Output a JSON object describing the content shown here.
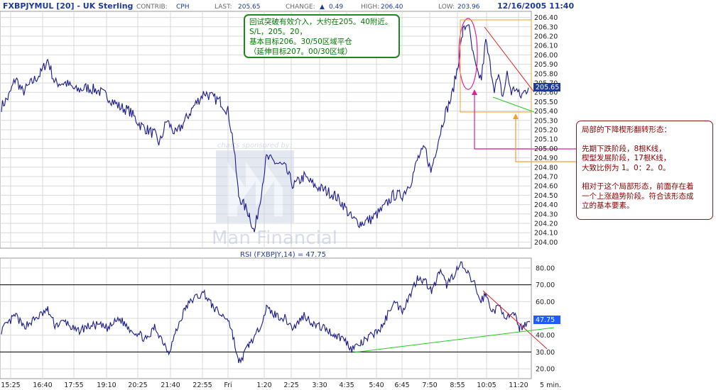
{
  "header": {
    "title": "FXBPJYMUL [20] - UK Sterling",
    "contrib_label": "CONTRIB:",
    "contrib_value": "CPH",
    "last_label": "LAST:",
    "last_value": "205.65",
    "change_label": "CHANGE:",
    "change_arrow": "▲",
    "change_value": "0.49",
    "high_label": "HIGH:",
    "high_value": "206.40",
    "low_label": "LOW:",
    "low_value": "203.96",
    "datetime": "12/16/2005 11:40"
  },
  "watermark": {
    "sponsored": "charts sponsored by:",
    "brand": "Man Financial"
  },
  "notes": {
    "green": [
      "回试突破有效介入，大约在205。40附近。",
      "S/L，205。20，",
      "基本目标206。30/50区域平仓",
      "（延伸目标207。00/30区域）"
    ],
    "red_title": "局部的下降楔形翻转形态：",
    "red_lines": [
      "先期下跌阶段，8根K线，",
      "楔型发展阶段，17根K线，",
      "大致比例为 1。0：2。0。"
    ],
    "red_lines2": [
      "相对于这个局部形态，前面存在着",
      "一个上涨趋势阶段。符合该形态成",
      "立的基本要素。"
    ]
  },
  "colors": {
    "price_line": "#1a1a8c",
    "rsi_line": "#1a1a8c",
    "grid": "#d9d9d9",
    "trend_red": "#e02020",
    "trend_green": "#22cc22",
    "ellipse_magenta": "#e0209a",
    "box_orange": "#f0a030",
    "last_price_box": "#1f3b99",
    "rsi_box": "#1e5cff"
  },
  "chart_data": [
    {
      "type": "line",
      "name": "FXBPJYMUL price (20-minute)",
      "ylim": [
        203.95,
        206.45
      ],
      "y_ticks": [
        204.0,
        204.1,
        204.2,
        204.3,
        204.4,
        204.5,
        204.6,
        204.7,
        204.8,
        204.9,
        205.0,
        205.1,
        205.2,
        205.3,
        205.4,
        205.5,
        205.6,
        205.7,
        205.8,
        205.9,
        206.0,
        206.1,
        206.2,
        206.3,
        206.4
      ],
      "y_tick_labels": [
        "204.00",
        "204.10",
        "204.20",
        "204.30",
        "204.40",
        "204.50",
        "204.60",
        "204.70",
        "204.80",
        "204.90",
        "205.00",
        "205.10",
        "205.20",
        "205.30",
        "205.40",
        "205.50",
        "205.60",
        "205.70",
        "205.80",
        "205.90",
        "206.00",
        "206.10",
        "206.20",
        "206.30",
        "206.40"
      ],
      "last_price_label": "205.65",
      "last_price": 205.65,
      "x_ticks": [
        "15:25",
        "16:40",
        "17:55",
        "19:10",
        "20:25",
        "21:40",
        "22:55",
        "Fri",
        "1:20",
        "2:25",
        "3:30",
        "4:35",
        "5:40",
        "6:45",
        "7:50",
        "8:55",
        "10:05",
        "11:20"
      ],
      "x_unit": "5 min.",
      "anchors": [
        [
          0,
          205.45
        ],
        [
          10,
          205.55
        ],
        [
          20,
          205.75
        ],
        [
          30,
          205.6
        ],
        [
          42,
          205.7
        ],
        [
          55,
          205.8
        ],
        [
          65,
          205.95
        ],
        [
          75,
          205.7
        ],
        [
          90,
          205.7
        ],
        [
          105,
          205.62
        ],
        [
          120,
          205.65
        ],
        [
          135,
          205.62
        ],
        [
          150,
          205.55
        ],
        [
          165,
          205.45
        ],
        [
          180,
          205.4
        ],
        [
          195,
          205.25
        ],
        [
          205,
          205.2
        ],
        [
          215,
          205.15
        ],
        [
          222,
          205.05
        ],
        [
          232,
          205.3
        ],
        [
          245,
          205.15
        ],
        [
          258,
          205.3
        ],
        [
          270,
          205.45
        ],
        [
          285,
          205.6
        ],
        [
          295,
          205.55
        ],
        [
          308,
          205.5
        ],
        [
          318,
          205.4
        ],
        [
          325,
          205.1
        ],
        [
          333,
          204.5
        ],
        [
          340,
          204.4
        ],
        [
          348,
          204.3
        ],
        [
          355,
          204.1
        ],
        [
          362,
          204.4
        ],
        [
          372,
          204.9
        ],
        [
          385,
          204.85
        ],
        [
          398,
          204.8
        ],
        [
          410,
          204.6
        ],
        [
          425,
          204.7
        ],
        [
          440,
          204.6
        ],
        [
          455,
          204.55
        ],
        [
          468,
          204.5
        ],
        [
          480,
          204.4
        ],
        [
          492,
          204.25
        ],
        [
          505,
          204.2
        ],
        [
          520,
          204.25
        ],
        [
          535,
          204.35
        ],
        [
          550,
          204.5
        ],
        [
          563,
          204.5
        ],
        [
          575,
          204.65
        ],
        [
          585,
          204.9
        ],
        [
          595,
          205.0
        ],
        [
          603,
          204.75
        ],
        [
          612,
          205.05
        ],
        [
          622,
          205.35
        ],
        [
          632,
          205.55
        ],
        [
          640,
          205.85
        ],
        [
          648,
          206.25
        ],
        [
          655,
          206.35
        ],
        [
          662,
          206.0
        ],
        [
          668,
          205.8
        ],
        [
          674,
          205.75
        ],
        [
          680,
          206.15
        ],
        [
          686,
          205.9
        ],
        [
          692,
          205.65
        ],
        [
          698,
          205.75
        ],
        [
          704,
          205.55
        ],
        [
          710,
          205.8
        ],
        [
          716,
          205.6
        ],
        [
          722,
          205.65
        ],
        [
          728,
          205.55
        ],
        [
          734,
          205.6
        ],
        [
          740,
          205.65
        ]
      ]
    },
    {
      "type": "line",
      "name": "RSI (FXBPJY,14)",
      "title": "RSI (FXBPJY,14) = 47.75",
      "ylim": [
        15,
        85
      ],
      "y_ticks": [
        20,
        30,
        40,
        50,
        60,
        70,
        80
      ],
      "y_tick_labels": [
        "20.00",
        "30.00",
        "40.00",
        "50.00",
        "60.00",
        "70.00",
        "80.00"
      ],
      "reference_lines": [
        70,
        30
      ],
      "last_value_label": "47.75",
      "last_value": 47.75,
      "anchors": [
        [
          0,
          43
        ],
        [
          10,
          47
        ],
        [
          20,
          52
        ],
        [
          30,
          45
        ],
        [
          42,
          48
        ],
        [
          55,
          52
        ],
        [
          65,
          55
        ],
        [
          75,
          46
        ],
        [
          90,
          48
        ],
        [
          105,
          42
        ],
        [
          120,
          45
        ],
        [
          135,
          46
        ],
        [
          150,
          44
        ],
        [
          165,
          50
        ],
        [
          180,
          44
        ],
        [
          195,
          40
        ],
        [
          205,
          37
        ],
        [
          215,
          45
        ],
        [
          225,
          38
        ],
        [
          235,
          30
        ],
        [
          245,
          42
        ],
        [
          258,
          56
        ],
        [
          270,
          62
        ],
        [
          285,
          65
        ],
        [
          295,
          58
        ],
        [
          308,
          52
        ],
        [
          318,
          50
        ],
        [
          325,
          40
        ],
        [
          333,
          23
        ],
        [
          340,
          28
        ],
        [
          348,
          35
        ],
        [
          358,
          40
        ],
        [
          372,
          56
        ],
        [
          385,
          52
        ],
        [
          398,
          50
        ],
        [
          410,
          44
        ],
        [
          425,
          52
        ],
        [
          440,
          46
        ],
        [
          455,
          44
        ],
        [
          468,
          40
        ],
        [
          480,
          38
        ],
        [
          492,
          32
        ],
        [
          505,
          35
        ],
        [
          520,
          40
        ],
        [
          535,
          45
        ],
        [
          550,
          60
        ],
        [
          563,
          55
        ],
        [
          575,
          65
        ],
        [
          585,
          75
        ],
        [
          595,
          72
        ],
        [
          605,
          66
        ],
        [
          615,
          78
        ],
        [
          625,
          70
        ],
        [
          635,
          76
        ],
        [
          645,
          82
        ],
        [
          655,
          76
        ],
        [
          665,
          70
        ],
        [
          672,
          60
        ],
        [
          680,
          64
        ],
        [
          690,
          54
        ],
        [
          700,
          57
        ],
        [
          710,
          50
        ],
        [
          720,
          52
        ],
        [
          728,
          44
        ],
        [
          735,
          47
        ],
        [
          742,
          47.75
        ]
      ]
    }
  ]
}
